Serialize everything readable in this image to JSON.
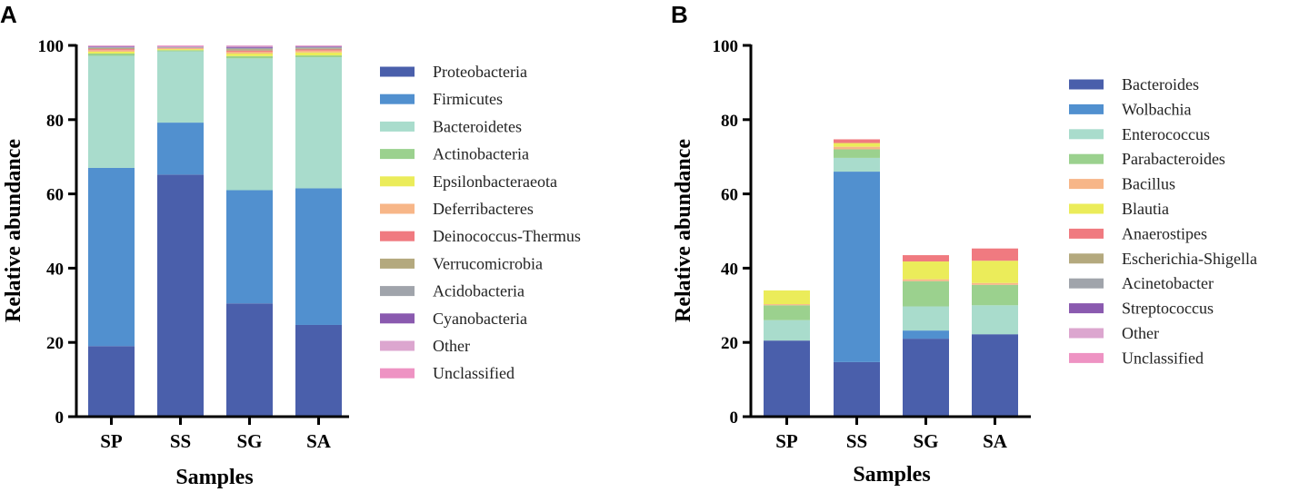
{
  "chart_data": [
    {
      "panel": "A",
      "type": "bar",
      "stacked": true,
      "xlabel": "Samples",
      "ylabel": "Relative abundance",
      "ylim": [
        0,
        100
      ],
      "yticks": [
        0,
        20,
        40,
        60,
        80,
        100
      ],
      "categories": [
        "SP",
        "SS",
        "SG",
        "SA"
      ],
      "series": [
        {
          "name": "Proteobacteria",
          "color": "#4a5fab",
          "values": [
            19,
            65.2,
            30.5,
            24.7
          ]
        },
        {
          "name": "Firmicutes",
          "color": "#5190cf",
          "values": [
            48,
            14,
            30.5,
            36.8
          ]
        },
        {
          "name": "Bacteroidetes",
          "color": "#a9dccc",
          "values": [
            30.2,
            19.2,
            35.5,
            35.3
          ]
        },
        {
          "name": "Actinobacteria",
          "color": "#9bd18e",
          "values": [
            0.6,
            0.3,
            0.6,
            0.5
          ]
        },
        {
          "name": "Epsilonbacteraeota",
          "color": "#ebec5a",
          "values": [
            0.5,
            0.3,
            0.7,
            0.8
          ]
        },
        {
          "name": "Deferribacteres",
          "color": "#f7b688",
          "values": [
            0.4,
            0.2,
            0.5,
            0.5
          ]
        },
        {
          "name": "Deinococcus-Thermus",
          "color": "#f07a80",
          "values": [
            0.3,
            0.1,
            0.3,
            0.3
          ]
        },
        {
          "name": "Verrucomicrobia",
          "color": "#b4a97e",
          "values": [
            0.3,
            0.1,
            0.4,
            0.3
          ]
        },
        {
          "name": "Acidobacteria",
          "color": "#a0a4ab",
          "values": [
            0.2,
            0.1,
            0.3,
            0.3
          ]
        },
        {
          "name": "Cyanobacteria",
          "color": "#8a5aaf",
          "values": [
            0.2,
            0.1,
            0.3,
            0.2
          ]
        },
        {
          "name": "Other",
          "color": "#dca6cf",
          "values": [
            0.2,
            0.2,
            0.3,
            0.2
          ]
        },
        {
          "name": "Unclassified",
          "color": "#ee93c3",
          "values": [
            0.1,
            0.2,
            0.1,
            0.1
          ]
        }
      ]
    },
    {
      "panel": "B",
      "type": "bar",
      "stacked": true,
      "xlabel": "Samples",
      "ylabel": "Relative abundance",
      "ylim": [
        0,
        100
      ],
      "yticks": [
        0,
        20,
        40,
        60,
        80,
        100
      ],
      "categories": [
        "SP",
        "SS",
        "SG",
        "SA"
      ],
      "series": [
        {
          "name": "Bacteroides",
          "color": "#4a5fab",
          "values": [
            20.5,
            14.7,
            21,
            22.2
          ]
        },
        {
          "name": "Wolbachia",
          "color": "#5190cf",
          "values": [
            0,
            51.3,
            2.2,
            0
          ]
        },
        {
          "name": "Enterococcus",
          "color": "#a9dccc",
          "values": [
            5.5,
            3.7,
            6.5,
            7.8
          ]
        },
        {
          "name": "Parabacteroides",
          "color": "#9bd18e",
          "values": [
            4,
            2.3,
            6.8,
            5.5
          ]
        },
        {
          "name": "Bacillus",
          "color": "#f7b688",
          "values": [
            0.3,
            0.7,
            0.5,
            0.5
          ]
        },
        {
          "name": "Blautia",
          "color": "#ebec5a",
          "values": [
            3.7,
            1,
            4.8,
            6
          ]
        },
        {
          "name": "Anaerostipes",
          "color": "#f07a80",
          "values": [
            0,
            1,
            1.7,
            3.3
          ]
        },
        {
          "name": "Escherichia-Shigella",
          "color": "#b4a97e",
          "values": [
            0,
            0,
            0,
            0
          ]
        },
        {
          "name": "Acinetobacter",
          "color": "#a0a4ab",
          "values": [
            0,
            0,
            0,
            0
          ]
        },
        {
          "name": "Streptococcus",
          "color": "#8a5aaf",
          "values": [
            0,
            0,
            0,
            0
          ]
        },
        {
          "name": "Other",
          "color": "#dca6cf",
          "values": [
            0,
            0,
            0,
            0
          ]
        },
        {
          "name": "Unclassified",
          "color": "#ee93c3",
          "values": [
            0,
            0,
            0,
            0
          ]
        }
      ]
    }
  ]
}
